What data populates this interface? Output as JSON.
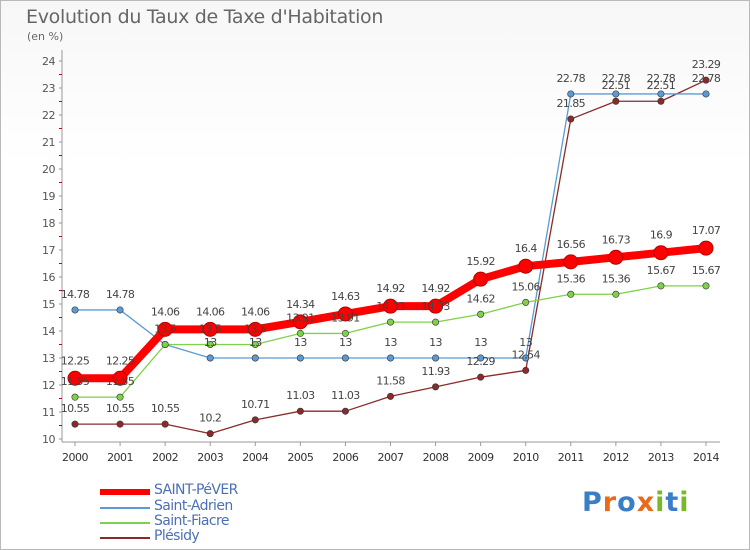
{
  "title": "Evolution du Taux de Taxe d'Habitation",
  "unit_label": "(en %)",
  "chart_data": {
    "type": "line",
    "title": "Evolution du Taux de Taxe d'Habitation",
    "ylabel": "(en %)",
    "x": [
      2000,
      2001,
      2002,
      2003,
      2004,
      2005,
      2006,
      2007,
      2008,
      2009,
      2010,
      2011,
      2012,
      2013,
      2014
    ],
    "ylim": [
      10,
      24
    ],
    "yticks": [
      10,
      11,
      12,
      13,
      14,
      15,
      16,
      17,
      18,
      19,
      20,
      21,
      22,
      23,
      24
    ],
    "grid": false,
    "legend_position": "bottom-left",
    "series": [
      {
        "name": "SAINT-PéVER",
        "color": "#ff0000",
        "values": [
          12.25,
          12.25,
          14.06,
          14.06,
          14.06,
          14.34,
          14.63,
          14.92,
          14.92,
          15.92,
          16.4,
          16.56,
          16.73,
          16.9,
          17.07
        ],
        "labels": [
          "12.25",
          "12.25",
          "14.06",
          "14.06",
          "14.06",
          "14.34",
          "14.63",
          "14.92",
          "14.92",
          "15.92",
          "16.4",
          "16.56",
          "16.73",
          "16.9",
          "17.07"
        ]
      },
      {
        "name": "Saint-Adrien",
        "color": "#5b9bd5",
        "values": [
          14.78,
          14.78,
          13.5,
          13,
          13,
          13,
          13,
          13,
          13,
          13,
          13,
          22.78,
          22.78,
          22.78,
          22.78
        ],
        "labels": [
          "14.78",
          "14.78",
          "",
          "13",
          "13",
          "13",
          "13",
          "13",
          "13",
          "13",
          "13",
          "22.78",
          "22.78",
          "22.78",
          "22.78"
        ]
      },
      {
        "name": "Saint-Fiacre",
        "color": "#7fd04a",
        "values": [
          11.55,
          11.55,
          13.5,
          13.5,
          13.5,
          13.91,
          13.91,
          14.33,
          14.33,
          14.62,
          15.06,
          15.36,
          15.36,
          15.67,
          15.67
        ],
        "labels": [
          "11.55",
          "11.55",
          "13.5",
          "13.5",
          "13.5",
          "13.91",
          "13.91",
          "14.33",
          "14.33",
          "14.62",
          "15.06",
          "15.36",
          "15.36",
          "15.67",
          "15.67"
        ]
      },
      {
        "name": "Plésidy",
        "color": "#8b2a2a",
        "values": [
          10.55,
          10.55,
          10.55,
          10.2,
          10.71,
          11.03,
          11.03,
          11.58,
          11.93,
          12.29,
          12.54,
          21.85,
          22.51,
          22.51,
          23.29
        ],
        "labels": [
          "10.55",
          "10.55",
          "10.55",
          "10.2",
          "10.71",
          "11.03",
          "11.03",
          "11.58",
          "11.93",
          "12.29",
          "12.54",
          "21.85",
          "22.51",
          "22.51",
          "23.29"
        ]
      }
    ]
  },
  "legend": [
    {
      "label": "SAINT-PéVER",
      "color": "#ff0000"
    },
    {
      "label": "Saint-Adrien",
      "color": "#5b9bd5"
    },
    {
      "label": "Saint-Fiacre",
      "color": "#7fd04a"
    },
    {
      "label": "Plésidy",
      "color": "#8b2a2a"
    }
  ],
  "logo": {
    "letters": [
      "P",
      "r",
      "o",
      "x",
      "i",
      "t",
      "i"
    ],
    "colors": [
      "#3a7ec8",
      "#e86a1a",
      "#3a7ec8",
      "#e86a1a",
      "#7ab828",
      "#3a7ec8",
      "#7ab828"
    ]
  }
}
